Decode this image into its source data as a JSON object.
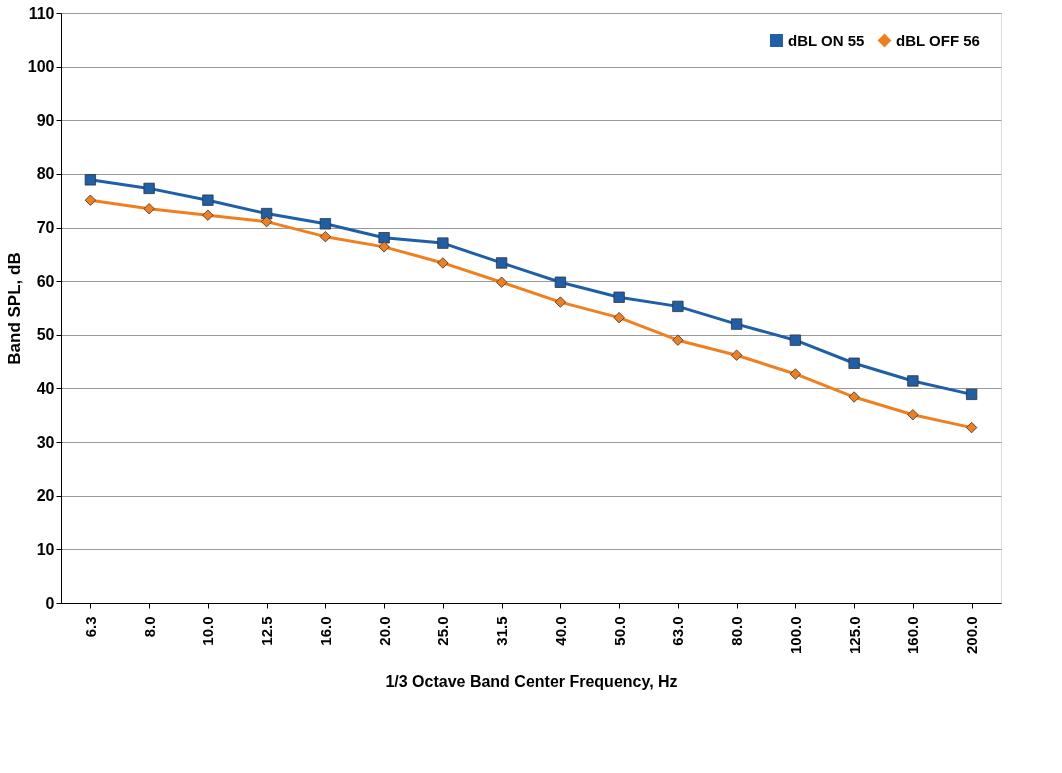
{
  "chart_data": {
    "type": "line",
    "xlabel": "1/3 Octave Band Center Frequency, Hz",
    "ylabel": "Band SPL, dB",
    "categories": [
      "6.3",
      "8.0",
      "10.0",
      "12.5",
      "16.0",
      "20.0",
      "25.0",
      "31.5",
      "40.0",
      "50.0",
      "63.0",
      "80.0",
      "100.0",
      "125.0",
      "160.0",
      "200.0"
    ],
    "series": [
      {
        "name": "dBL ON 55",
        "color": "#1f5fa8",
        "marker": "square",
        "values": [
          78.9,
          77.3,
          75.1,
          72.6,
          70.7,
          68.1,
          67.1,
          63.4,
          59.8,
          57.0,
          55.3,
          52.0,
          49.0,
          44.7,
          41.4,
          38.9
        ]
      },
      {
        "name": "dBL OFF 56",
        "color": "#f07f20",
        "marker": "diamond",
        "values": [
          75.1,
          73.5,
          72.3,
          71.1,
          68.3,
          66.4,
          63.4,
          59.8,
          56.1,
          53.2,
          49.0,
          46.2,
          42.7,
          38.4,
          35.1,
          32.7
        ]
      }
    ],
    "ylim": [
      0,
      110
    ],
    "yticks": [
      0,
      10,
      20,
      30,
      40,
      50,
      60,
      70,
      80,
      90,
      100,
      110
    ],
    "grid": "y",
    "legend": "top right",
    "line_style": "solid"
  }
}
